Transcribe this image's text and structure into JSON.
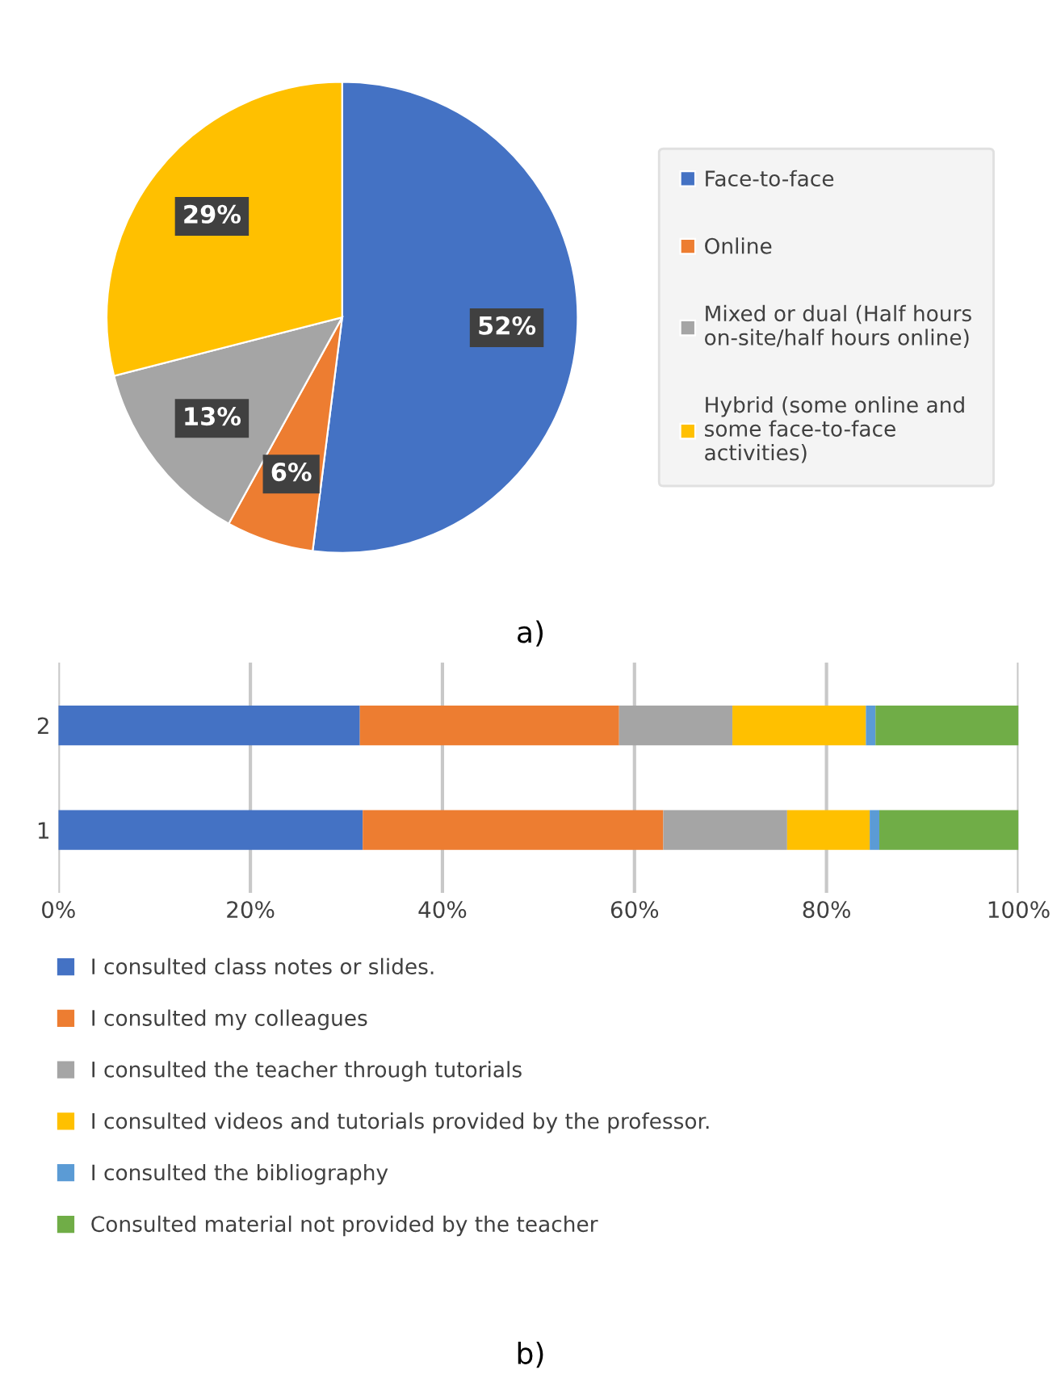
{
  "chart_data": [
    {
      "type": "pie",
      "categories": [
        "Face-to-face",
        "Online",
        "Mixed or dual (Half hours on-site/half hours online)",
        "Hybrid (some online and some face-to-face activities)"
      ],
      "values": [
        52,
        6,
        13,
        29
      ],
      "colors": [
        "#4472c4",
        "#ed7d31",
        "#a5a5a5",
        "#ffc000"
      ],
      "value_labels": [
        "52%",
        "6%",
        "13%",
        "29%"
      ],
      "legend": "right",
      "annotations": [
        "a)"
      ]
    },
    {
      "type": "bar",
      "orientation": "horizontal",
      "stacked": true,
      "categories": [
        "2",
        "1"
      ],
      "series": [
        {
          "name": "I consulted class notes or slides.",
          "color": "#4472c4",
          "values": [
            31.4,
            31.7
          ]
        },
        {
          "name": "I consulted my colleagues",
          "color": "#ed7d31",
          "values": [
            27.0,
            31.3
          ]
        },
        {
          "name": "I consulted the teacher through tutorials",
          "color": "#a5a5a5",
          "values": [
            11.8,
            12.9
          ]
        },
        {
          "name": "I consulted videos and tutorials provided by the professor.",
          "color": "#ffc000",
          "values": [
            13.9,
            8.6
          ]
        },
        {
          "name": "I consulted the bibliography",
          "color": "#5b9bd5",
          "values": [
            1.0,
            1.0
          ]
        },
        {
          "name": "Consulted material not provided by the teacher",
          "color": "#70ad47",
          "values": [
            14.9,
            14.5
          ]
        }
      ],
      "xlim": [
        0,
        100
      ],
      "xticks": [
        {
          "value": 0,
          "label": "0%"
        },
        {
          "value": 20,
          "label": "20%"
        },
        {
          "value": 40,
          "label": "40%"
        },
        {
          "value": 60,
          "label": "60%"
        },
        {
          "value": 80,
          "label": "80%"
        },
        {
          "value": 100,
          "label": "100%"
        }
      ],
      "grid": "x",
      "legend": "bottom",
      "annotations": [
        "b)"
      ]
    }
  ]
}
